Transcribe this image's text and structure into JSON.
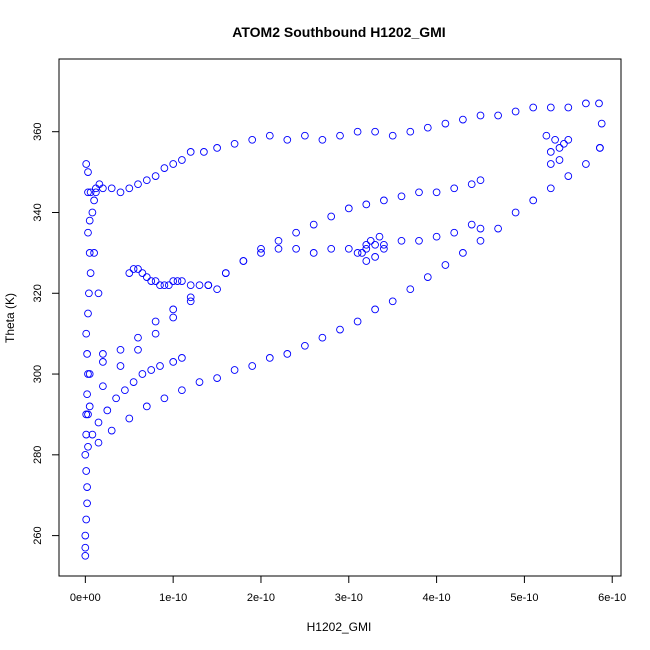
{
  "chart_data": {
    "type": "scatter",
    "title": "ATOM2 Southbound H1202_GMI",
    "xlabel": "H1202_GMI",
    "ylabel": "Theta (K)",
    "xlim": [
      -3e-11,
      6.1e-10
    ],
    "ylim": [
      250,
      378
    ],
    "x_ticks": [
      {
        "value": 0,
        "label": "0e+00"
      },
      {
        "value": 1e-10,
        "label": "1e-10"
      },
      {
        "value": 2e-10,
        "label": "2e-10"
      },
      {
        "value": 3e-10,
        "label": "3e-10"
      },
      {
        "value": 4e-10,
        "label": "4e-10"
      },
      {
        "value": 5e-10,
        "label": "5e-10"
      },
      {
        "value": 6e-10,
        "label": "6e-10"
      }
    ],
    "y_ticks": [
      {
        "value": 260,
        "label": "260"
      },
      {
        "value": 280,
        "label": "280"
      },
      {
        "value": 300,
        "label": "300"
      },
      {
        "value": 320,
        "label": "320"
      },
      {
        "value": 340,
        "label": "340"
      },
      {
        "value": 360,
        "label": "360"
      }
    ],
    "grid": false,
    "legend": "none",
    "marker": "open-circle",
    "color": "#0000ff",
    "series": [
      {
        "x": [
          0,
          0,
          0,
          1e-12,
          2e-12,
          2e-12,
          1e-12,
          0,
          1e-12,
          1e-12,
          2e-12,
          3e-12,
          2e-12,
          1e-12,
          3e-12,
          4e-12,
          6e-12,
          5e-12,
          3e-12,
          8e-12,
          1.2e-11,
          1.6e-11,
          1e-11,
          5e-12,
          3e-12,
          1e-11,
          1.5e-11,
          2e-11,
          3e-12,
          1e-12
        ],
        "y": [
          255,
          257,
          260,
          264,
          268,
          272,
          276,
          280,
          285,
          290,
          295,
          300,
          305,
          310,
          315,
          320,
          325,
          330,
          335,
          340,
          345,
          347,
          343,
          338,
          350,
          330,
          320,
          305,
          290,
          352
        ]
      },
      {
        "x": [
          3e-12,
          6e-12,
          1.2e-11,
          2e-11,
          3e-11,
          4e-11,
          5e-11,
          6e-11,
          7e-11,
          8e-11,
          9e-11,
          1e-10,
          1.1e-10,
          1.2e-10,
          1.35e-10,
          1.5e-10,
          1.7e-10,
          1.9e-10,
          2.1e-10,
          2.3e-10,
          2.5e-10,
          2.7e-10,
          2.9e-10,
          3.1e-10,
          3.3e-10,
          3.5e-10,
          3.7e-10,
          3.9e-10,
          4.1e-10,
          4.3e-10,
          4.5e-10,
          4.7e-10,
          4.9e-10,
          5.1e-10,
          5.3e-10,
          5.5e-10,
          5.7e-10,
          5.85e-10,
          5.88e-10,
          5.86e-10
        ],
        "y": [
          345,
          345,
          346,
          346,
          346,
          345,
          346,
          347,
          348,
          349,
          351,
          352,
          353,
          355,
          355,
          356,
          357,
          358,
          359,
          358,
          359,
          358,
          359,
          360,
          360,
          359,
          360,
          361,
          362,
          363,
          364,
          364,
          365,
          366,
          366,
          366,
          367,
          367,
          362,
          356
        ]
      },
      {
        "x": [
          5.86e-10,
          5.7e-10,
          5.5e-10,
          5.3e-10,
          5.1e-10,
          4.9e-10,
          4.7e-10,
          4.5e-10,
          4.3e-10,
          4.1e-10,
          3.9e-10,
          3.7e-10,
          3.5e-10,
          3.3e-10,
          3.1e-10,
          2.9e-10,
          2.7e-10,
          2.5e-10,
          2.3e-10,
          2.1e-10,
          1.9e-10,
          1.7e-10,
          1.5e-10,
          1.3e-10,
          1.1e-10,
          9e-11,
          7e-11,
          5e-11,
          3e-11,
          1.5e-11
        ],
        "y": [
          356,
          352,
          349,
          346,
          343,
          340,
          336,
          333,
          330,
          327,
          324,
          321,
          318,
          316,
          313,
          311,
          309,
          307,
          305,
          304,
          302,
          301,
          299,
          298,
          296,
          294,
          292,
          289,
          286,
          283
        ]
      },
      {
        "x": [
          5e-12,
          2e-11,
          4e-11,
          6e-11,
          8e-11,
          1e-10,
          1.2e-10,
          1.4e-10,
          1.6e-10,
          1.8e-10,
          2e-10,
          2.2e-10,
          2.4e-10,
          2.6e-10,
          2.8e-10,
          3e-10,
          3.2e-10,
          3.4e-10,
          3.6e-10,
          3.8e-10,
          4e-10,
          4.2e-10,
          4.4e-10,
          4.5e-10
        ],
        "y": [
          300,
          303,
          306,
          309,
          313,
          316,
          319,
          322,
          325,
          328,
          330,
          331,
          331,
          330,
          331,
          331,
          332,
          332,
          333,
          333,
          334,
          335,
          337,
          336
        ]
      },
      {
        "x": [
          5e-12,
          2e-11,
          4e-11,
          6e-11,
          8e-11,
          1e-10,
          1.2e-10,
          1.4e-10,
          1.6e-10,
          1.8e-10,
          2e-10,
          2.2e-10,
          2.4e-10,
          2.6e-10,
          2.8e-10,
          3e-10,
          3.2e-10,
          3.4e-10,
          3.6e-10,
          3.8e-10,
          4e-10,
          4.2e-10,
          4.4e-10,
          4.5e-10
        ],
        "y": [
          292,
          297,
          302,
          306,
          310,
          314,
          318,
          322,
          325,
          328,
          331,
          333,
          335,
          337,
          339,
          341,
          342,
          343,
          344,
          345,
          345,
          346,
          347,
          348
        ]
      },
      {
        "x": [
          5e-11,
          5.5e-11,
          6e-11,
          6.5e-11,
          7e-11,
          7.5e-11,
          8e-11,
          8.5e-11,
          9e-11,
          9.5e-11,
          1e-10,
          1.05e-10,
          1.1e-10,
          1.2e-10,
          1.3e-10,
          1.4e-10,
          1.5e-10
        ],
        "y": [
          325,
          326,
          326,
          325,
          324,
          323,
          323,
          322,
          322,
          322,
          323,
          323,
          323,
          322,
          322,
          322,
          321
        ]
      },
      {
        "x": [
          3e-12,
          8e-12,
          1.5e-11,
          2.5e-11,
          3.5e-11,
          4.5e-11,
          5.5e-11,
          6.5e-11,
          7.5e-11,
          8.5e-11,
          1e-10,
          1.1e-10
        ],
        "y": [
          282,
          285,
          288,
          291,
          294,
          296,
          298,
          300,
          301,
          302,
          303,
          304
        ]
      },
      {
        "x": [
          3.1e-10,
          3.2e-10,
          3.25e-10,
          3.3e-10,
          3.35e-10,
          3.4e-10,
          3.3e-10,
          3.2e-10,
          3.15e-10,
          5.3e-10,
          5.35e-10,
          5.4e-10,
          5.45e-10,
          5.5e-10,
          5.4e-10,
          5.3e-10,
          5.25e-10
        ],
        "y": [
          330,
          331,
          333,
          332,
          334,
          331,
          329,
          328,
          330,
          355,
          358,
          356,
          357,
          358,
          353,
          352,
          359
        ]
      }
    ]
  }
}
